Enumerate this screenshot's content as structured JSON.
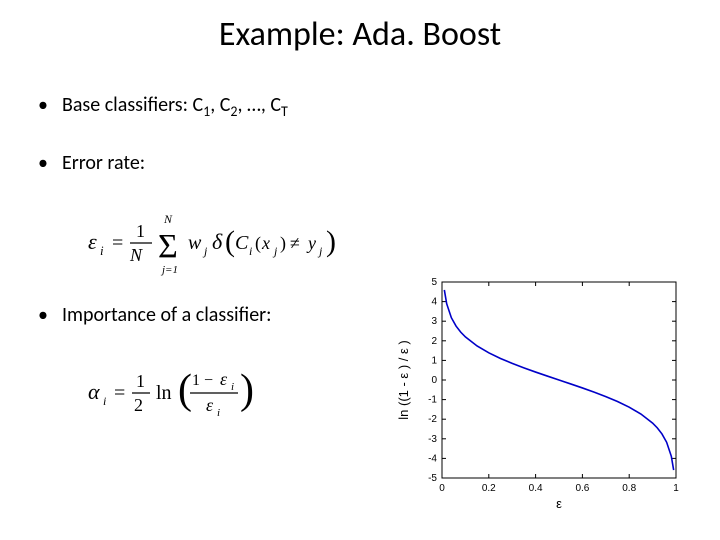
{
  "title": "Example: Ada. Boost",
  "bullets": {
    "b1_prefix": "Base classifiers: C",
    "b1_mid1": ", C",
    "b1_mid2": ", …, C",
    "b2": "Error rate:",
    "b3": "Importance of a classifier:"
  },
  "formulas": {
    "error_rate": {
      "lhs": "ε_i",
      "rhs": "(1/N) Σ_{j=1}^{N} w_j δ(C_i(x_j) ≠ y_j)"
    },
    "importance": {
      "lhs": "α_i",
      "rhs": "(1/2) ln((1 − ε_i)/ε_i)"
    }
  },
  "chart": {
    "type": "line",
    "xlabel": "ε",
    "ylabel": "ln ((1 - ε ) / ε )",
    "xlim": [
      0,
      1
    ],
    "ylim": [
      -5,
      5
    ],
    "xticks": [
      0,
      0.2,
      0.4,
      0.6,
      0.8,
      1
    ],
    "yticks": [
      -5,
      -4,
      -3,
      -2,
      -1,
      0,
      1,
      2,
      3,
      4,
      5
    ],
    "series": {
      "color": "#0000c8",
      "line_width": 1.6,
      "x": [
        0.01,
        0.02,
        0.04,
        0.06,
        0.08,
        0.1,
        0.15,
        0.2,
        0.25,
        0.3,
        0.35,
        0.4,
        0.45,
        0.5,
        0.55,
        0.6,
        0.65,
        0.7,
        0.75,
        0.8,
        0.85,
        0.9,
        0.92,
        0.94,
        0.96,
        0.98,
        0.99
      ],
      "y": [
        4.595,
        3.892,
        3.178,
        2.752,
        2.442,
        2.197,
        1.735,
        1.386,
        1.099,
        0.847,
        0.619,
        0.405,
        0.201,
        0.0,
        -0.201,
        -0.405,
        -0.619,
        -0.847,
        -1.099,
        -1.386,
        -1.735,
        -2.197,
        -2.442,
        -2.752,
        -3.178,
        -3.892,
        -4.595
      ]
    },
    "background_color": "#ffffff",
    "axis_color": "#000000",
    "tick_font_size": 10,
    "label_font_size": 13,
    "box": true
  }
}
